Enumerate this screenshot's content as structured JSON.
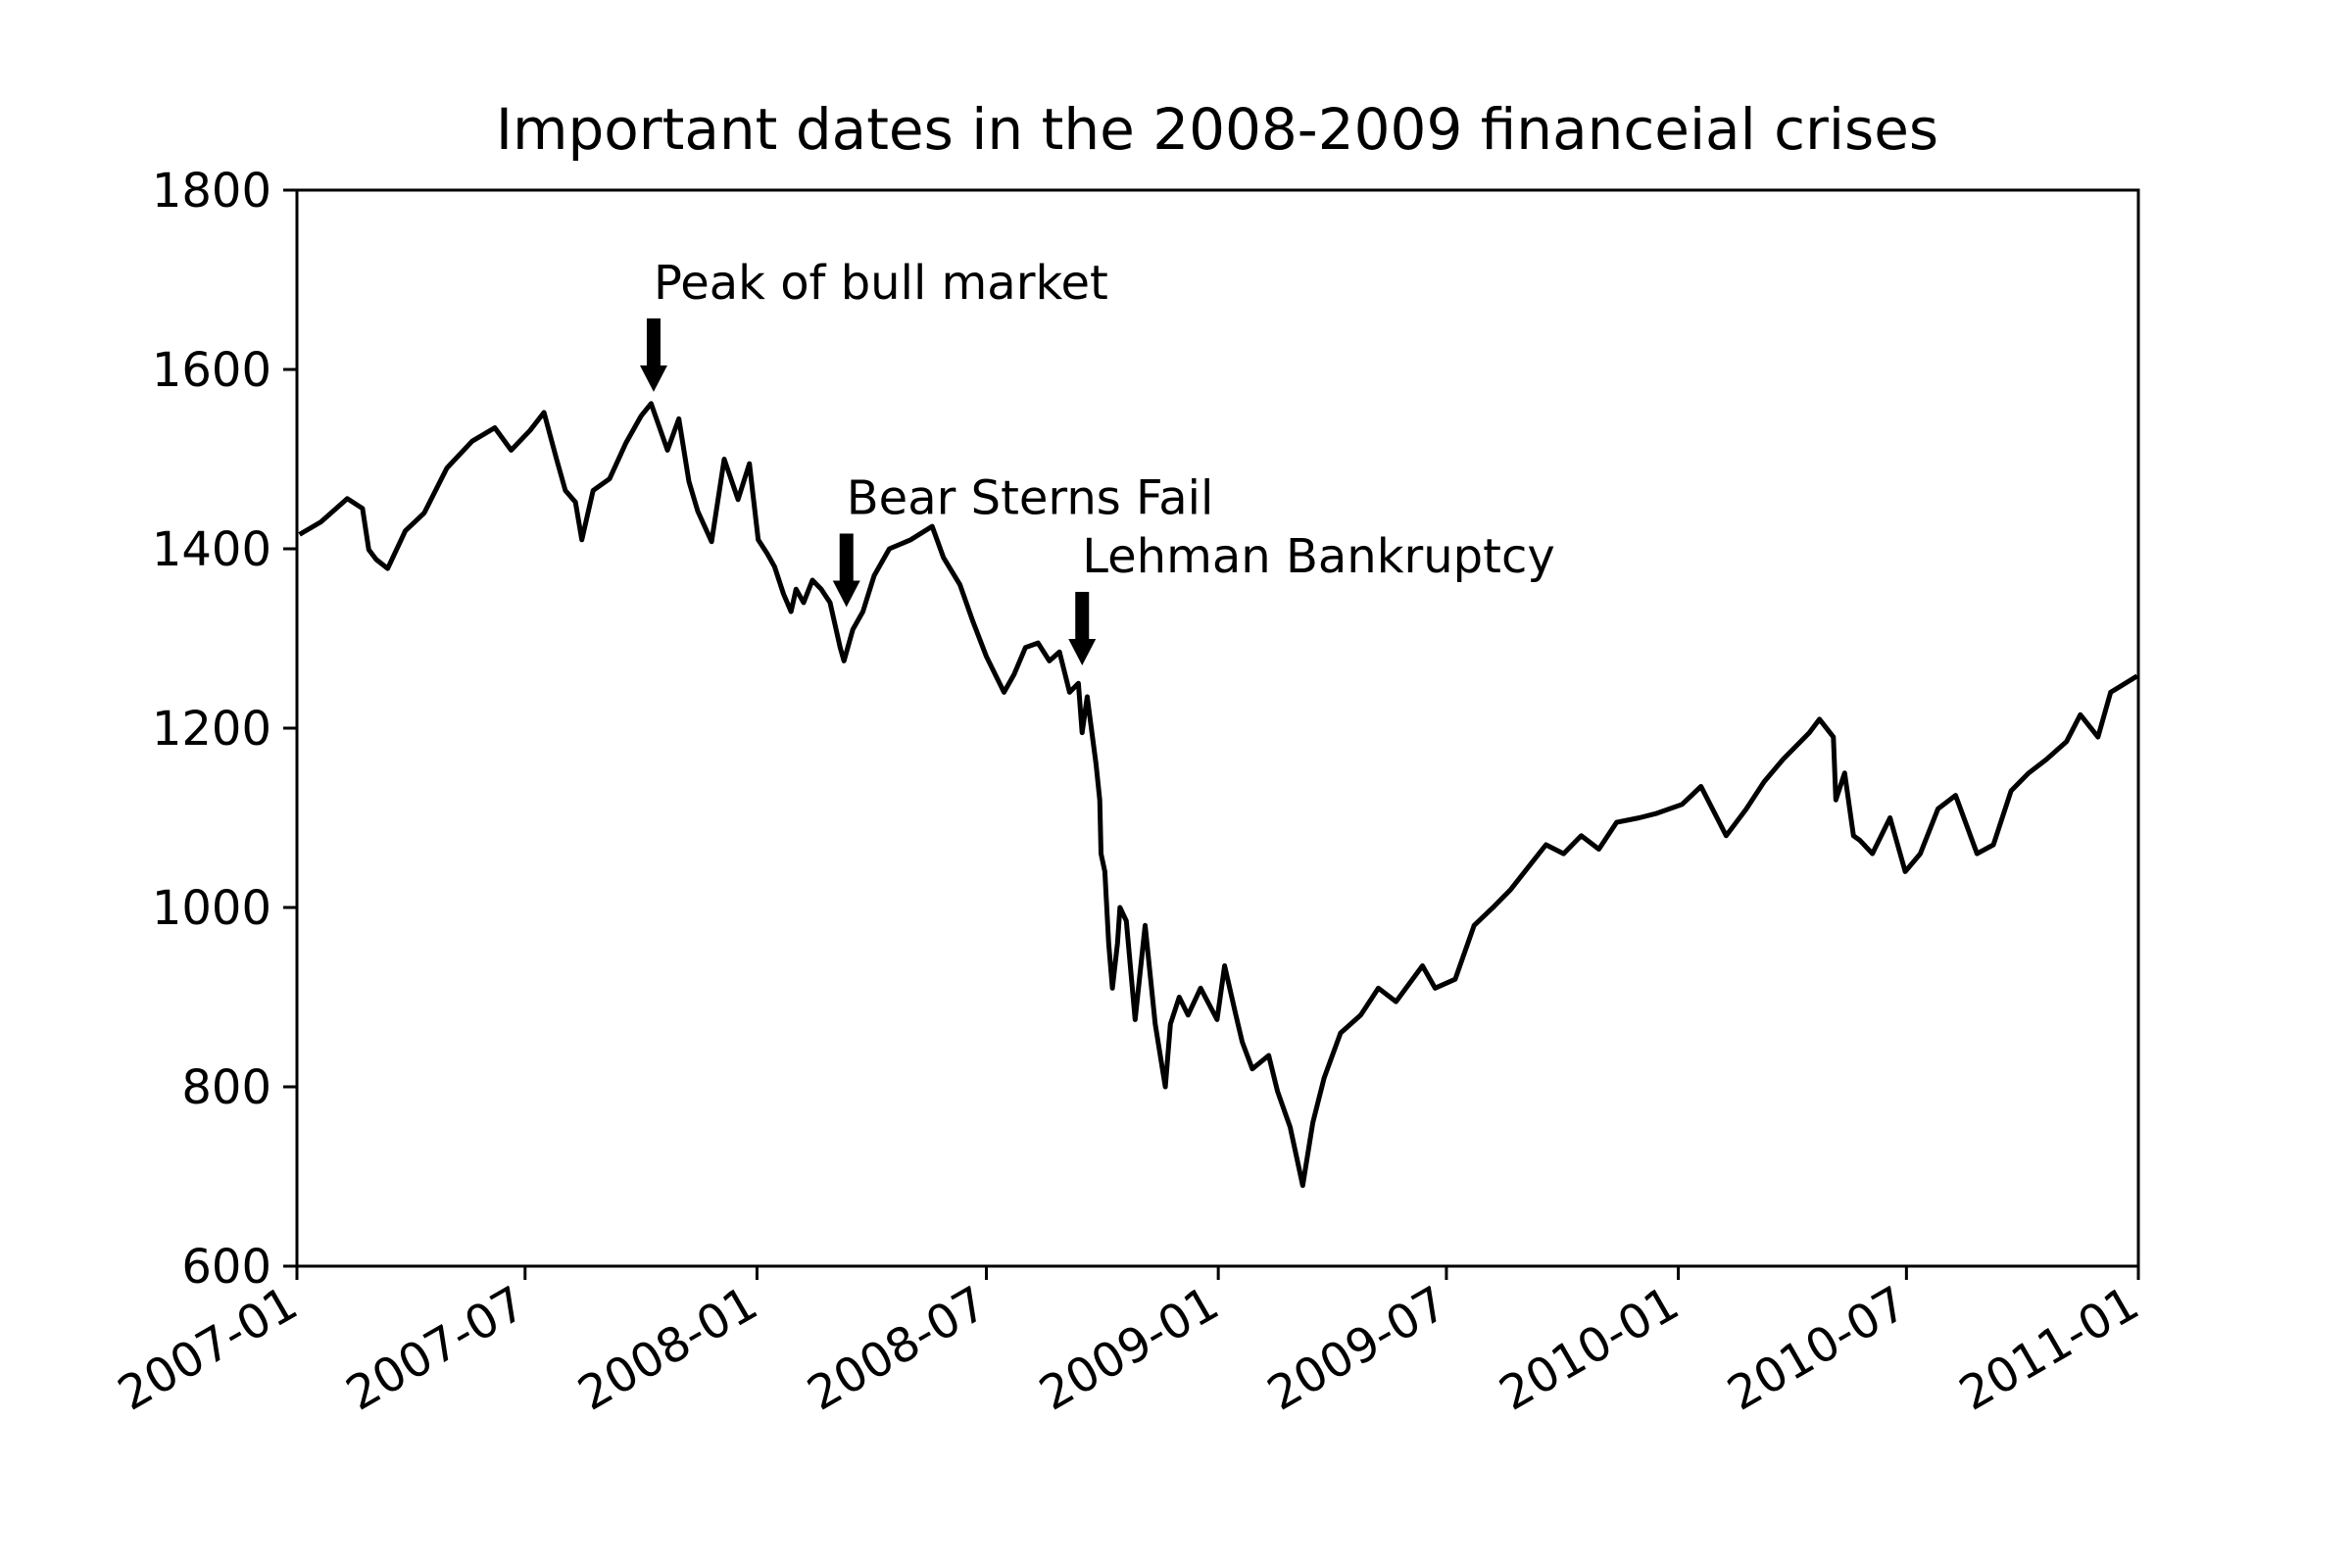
{
  "chart_data": {
    "type": "line",
    "title": "Important dates in the 2008-2009 financeial crises",
    "xlabel": "",
    "ylabel": "",
    "xlim": [
      "2007-01-01",
      "2011-01-01"
    ],
    "ylim": [
      600,
      1800
    ],
    "x_ticks": [
      "2007-01",
      "2007-07",
      "2008-01",
      "2008-07",
      "2009-01",
      "2009-07",
      "2010-01",
      "2010-07",
      "2011-01"
    ],
    "y_ticks": [
      600,
      800,
      1000,
      1200,
      1400,
      1600,
      1800
    ],
    "grid": false,
    "legend": "none",
    "line_color": "#000000",
    "series": [
      {
        "x": [
          "2007-01-03",
          "2007-01-20",
          "2007-02-10",
          "2007-02-22",
          "2007-02-27",
          "2007-03-05",
          "2007-03-14",
          "2007-03-28",
          "2007-04-12",
          "2007-04-30",
          "2007-05-20",
          "2007-06-07",
          "2007-06-20",
          "2007-07-05",
          "2007-07-16",
          "2007-07-26",
          "2007-08-02",
          "2007-08-10",
          "2007-08-15",
          "2007-08-24",
          "2007-09-06",
          "2007-09-19",
          "2007-10-01",
          "2007-10-09",
          "2007-10-22",
          "2007-10-31",
          "2007-11-08",
          "2007-11-15",
          "2007-11-26",
          "2007-12-06",
          "2007-12-17",
          "2007-12-26",
          "2008-01-02",
          "2008-01-09",
          "2008-01-15",
          "2008-01-22",
          "2008-01-28",
          "2008-02-01",
          "2008-02-07",
          "2008-02-14",
          "2008-02-21",
          "2008-02-28",
          "2008-03-07",
          "2008-03-10",
          "2008-03-17",
          "2008-03-25",
          "2008-04-03",
          "2008-04-15",
          "2008-05-02",
          "2008-05-19",
          "2008-05-28",
          "2008-06-10",
          "2008-06-20",
          "2008-07-01",
          "2008-07-15",
          "2008-07-23",
          "2008-08-01",
          "2008-08-11",
          "2008-08-20",
          "2008-08-28",
          "2008-09-05",
          "2008-09-12",
          "2008-09-15",
          "2008-09-19",
          "2008-09-26",
          "2008-09-29",
          "2008-09-30",
          "2008-10-03",
          "2008-10-06",
          "2008-10-09",
          "2008-10-13",
          "2008-10-15",
          "2008-10-20",
          "2008-10-27",
          "2008-11-04",
          "2008-11-12",
          "2008-11-20",
          "2008-11-24",
          "2008-12-01",
          "2008-12-08",
          "2008-12-18",
          "2008-12-31",
          "2009-01-06",
          "2009-01-15",
          "2009-01-20",
          "2009-01-28",
          "2009-02-10",
          "2009-02-17",
          "2009-02-27",
          "2009-03-09",
          "2009-03-17",
          "2009-03-26",
          "2009-04-08",
          "2009-04-24",
          "2009-05-08",
          "2009-05-22",
          "2009-06-12",
          "2009-06-22",
          "2009-07-08",
          "2009-07-23",
          "2009-08-07",
          "2009-08-21",
          "2009-09-04",
          "2009-09-18",
          "2009-10-02",
          "2009-10-16",
          "2009-10-30",
          "2009-11-13",
          "2009-12-01",
          "2009-12-15",
          "2010-01-04",
          "2010-01-19",
          "2010-02-08",
          "2010-02-24",
          "2010-03-10",
          "2010-03-25",
          "2010-04-15",
          "2010-04-23",
          "2010-05-04",
          "2010-05-06",
          "2010-05-13",
          "2010-05-20",
          "2010-05-25",
          "2010-06-04",
          "2010-06-18",
          "2010-06-30",
          "2010-07-12",
          "2010-07-26",
          "2010-08-09",
          "2010-08-26",
          "2010-09-08",
          "2010-09-22",
          "2010-10-06",
          "2010-10-20",
          "2010-11-05",
          "2010-11-16",
          "2010-11-30",
          "2010-12-10",
          "2010-12-31"
        ],
        "values": [
          1416,
          1430,
          1456,
          1445,
          1399,
          1388,
          1378,
          1420,
          1440,
          1490,
          1520,
          1535,
          1510,
          1532,
          1552,
          1500,
          1465,
          1452,
          1410,
          1465,
          1478,
          1518,
          1548,
          1562,
          1510,
          1545,
          1475,
          1442,
          1408,
          1500,
          1455,
          1495,
          1410,
          1395,
          1380,
          1350,
          1330,
          1355,
          1340,
          1365,
          1355,
          1340,
          1290,
          1275,
          1310,
          1330,
          1370,
          1400,
          1410,
          1425,
          1390,
          1360,
          1320,
          1280,
          1240,
          1260,
          1290,
          1295,
          1275,
          1285,
          1240,
          1250,
          1195,
          1235,
          1160,
          1120,
          1060,
          1040,
          960,
          910,
          960,
          1000,
          985,
          875,
          980,
          870,
          800,
          870,
          900,
          880,
          910,
          875,
          935,
          880,
          850,
          820,
          835,
          795,
          755,
          690,
          760,
          810,
          860,
          880,
          910,
          895,
          935,
          910,
          920,
          980,
          1000,
          1020,
          1045,
          1070,
          1060,
          1080,
          1065,
          1095,
          1100,
          1105,
          1115,
          1135,
          1080,
          1110,
          1140,
          1165,
          1195,
          1210,
          1190,
          1120,
          1150,
          1080,
          1075,
          1060,
          1100,
          1040,
          1060,
          1110,
          1125,
          1060,
          1070,
          1130,
          1150,
          1165,
          1185,
          1215,
          1190,
          1240,
          1258
        ]
      }
    ],
    "annotations": [
      {
        "text": "Peak of bull market",
        "date": "2007-10-11",
        "value": 1565
      },
      {
        "text": "Bear Sterns Fail",
        "date": "2008-03-12",
        "value": 1325
      },
      {
        "text": "Lehman Bankruptcy",
        "date": "2008-09-15",
        "value": 1260
      }
    ]
  }
}
